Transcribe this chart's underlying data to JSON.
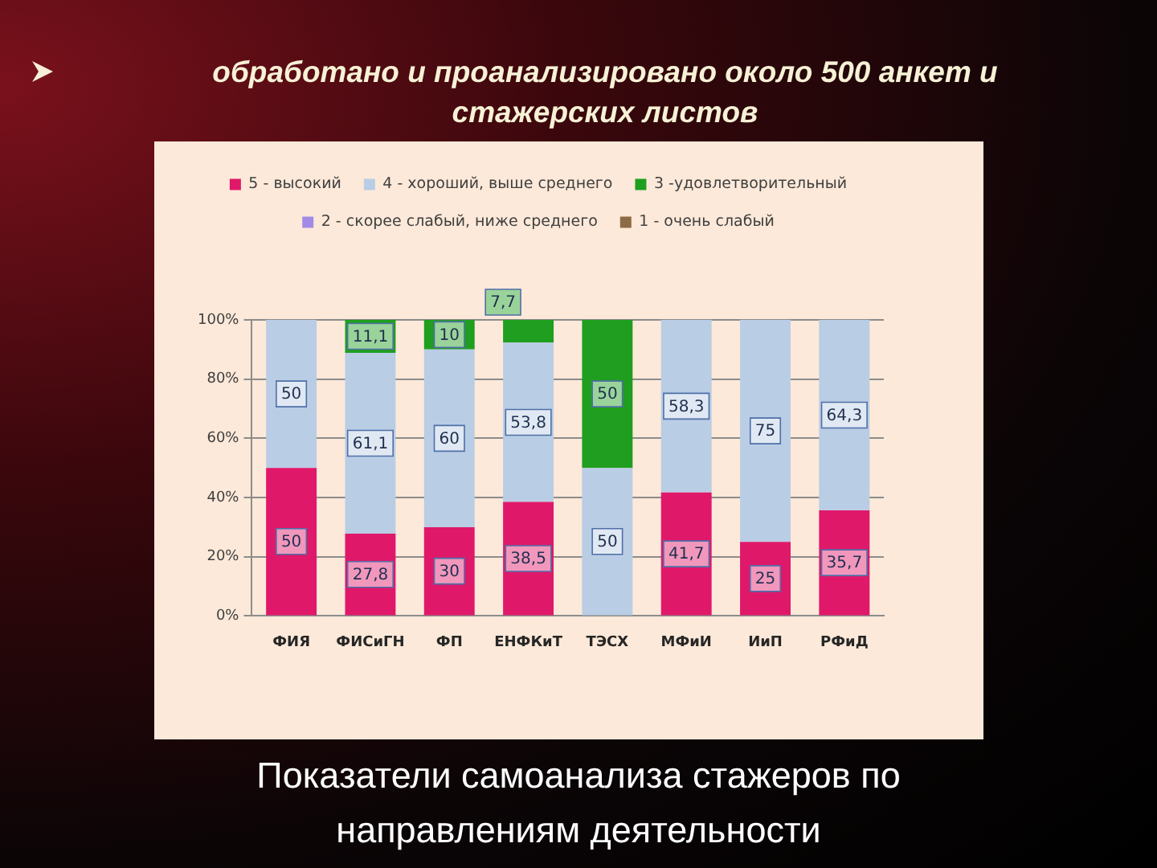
{
  "chart_data": {
    "type": "bar",
    "stacked": true,
    "title": "обработано и проанализировано около 500 анкет и стажерских листов",
    "annotations": [
      "Показатели самоанализа стажеров по направлениям деятельности"
    ],
    "categories": [
      "ФИЯ",
      "ФИСиГН",
      "ФП",
      "ЕНФКиТ",
      "ТЭСХ",
      "МФиИ",
      "ИиП",
      "РФиД"
    ],
    "series": [
      {
        "name": "5 - высокий",
        "color": "#e0186a",
        "values": [
          50,
          27.8,
          30,
          38.5,
          null,
          41.7,
          25,
          35.7
        ],
        "value_labels": [
          "50",
          "27,8",
          "30",
          "38,5",
          null,
          "41,7",
          "25",
          "35,7"
        ]
      },
      {
        "name": "4 - хороший, выше среднего",
        "color": "#b9cde5",
        "values": [
          50,
          61.1,
          60,
          53.8,
          50,
          58.3,
          75,
          64.3
        ],
        "value_labels": [
          "50",
          "61,1",
          "60",
          "53,8",
          "50",
          "58,3",
          "75",
          "64,3"
        ]
      },
      {
        "name": "3 -удовлетворительный",
        "color": "#1f9e1f",
        "values": [
          null,
          11.1,
          10,
          7.7,
          50,
          null,
          null,
          null
        ],
        "value_labels": [
          null,
          "11,1",
          "10",
          "7,7",
          "50",
          null,
          null,
          null
        ]
      },
      {
        "name": "2 - скорее слабый, ниже среднего",
        "color": "#a28be6",
        "values": [
          null,
          null,
          null,
          null,
          null,
          null,
          null,
          null
        ]
      },
      {
        "name": "1 - очень слабый",
        "color": "#8c6a45",
        "values": [
          null,
          null,
          null,
          null,
          null,
          null,
          null,
          null
        ]
      }
    ],
    "ylim": [
      0,
      100
    ],
    "yticks": [
      {
        "value": 0,
        "label": "0%"
      },
      {
        "value": 20,
        "label": "20%"
      },
      {
        "value": 40,
        "label": "40%"
      },
      {
        "value": 60,
        "label": "60%"
      },
      {
        "value": 80,
        "label": "80%"
      },
      {
        "value": 100,
        "label": "100%"
      }
    ],
    "grid": "y",
    "legend": "top"
  }
}
